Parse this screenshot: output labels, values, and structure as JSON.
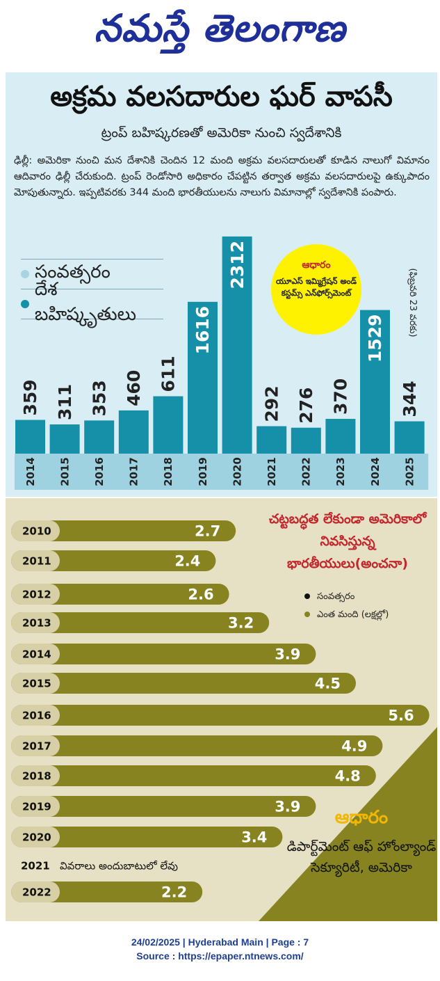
{
  "masthead": "నమస్తే తెలంగాణ",
  "headline": "అక్రమ వలసదారుల ఘర్ వాపసీ",
  "subheadline": "ట్రంప్ బహిష్కరణతో అమెరికా నుంచి స్వదేశానికి",
  "body": "ఢిల్లీ: అమెరికా నుంచి మన దేశానికి చెందిన 12 మంది అక్రమ వలసదారులతో కూడిన నాలుగో విమానం ఆదివారం ఢిల్లీ చేరుకుంది. ట్రంప్ రెండోసారి అధికారం చేపట్టిన తర్వాత అక్రమ వలసదారులపై ఉక్కుపాదం మోపుతున్నారు. ఇప్పటివరకు 344 మంది భారతీయులను నాలుగు విమానాల్లో స్వదేశానికి పంపారు.",
  "colors": {
    "teal": "#1590a8",
    "teal_light": "#9fd2e0",
    "olive": "#868320",
    "panel1_bg": "#d9eef4",
    "panel2_bg": "#e6e1c4",
    "title_red": "#c1272d",
    "source_yellow": "#f2b705",
    "year_dot": "#a6d4e2"
  },
  "chart1_legend": {
    "year": "సంవత్సరం",
    "deportations": "దేశ బహిష్కృతులు"
  },
  "chart1_source": {
    "label": "ఆధారం",
    "text": "యూఎస్ ఇమ్మిగ్రేషన్ అండ్ కస్టమ్స్ ఎన్‌ఫోర్స్‌మెంట్"
  },
  "chart1_note": "(ఫిబ్రవరి 23 వరకు)",
  "chart2_title": "చట్టబద్ధత లేకుండా అమెరికాలో నివసిస్తున్న భారతీయులు(అంచనా)",
  "chart2_legend": {
    "year": "సంవత్సరం",
    "count": "ఎంత మంది (లక్షల్లో)"
  },
  "chart2_source": {
    "label": "ఆధారం",
    "text": "డిపార్ట్‌మెంట్ ఆఫ్ హోంల్యాండ్ సెక్యూరిటీ, అమెరికా"
  },
  "footer": {
    "line1": "24/02/2025 | Hyderabad Main | Page : 7",
    "line2": "Source : https://epaper.ntnews.com/"
  },
  "chart_data": [
    {
      "type": "bar",
      "categories": [
        "2014",
        "2015",
        "2016",
        "2017",
        "2018",
        "2019",
        "2020",
        "2021",
        "2022",
        "2023",
        "2024",
        "2025"
      ],
      "values": [
        359,
        311,
        353,
        460,
        611,
        1616,
        2312,
        292,
        276,
        370,
        1529,
        344
      ],
      "series": [
        {
          "name": "దేశ బహిష్కృతులు",
          "values": [
            359,
            311,
            353,
            460,
            611,
            1616,
            2312,
            292,
            276,
            370,
            1529,
            344
          ]
        }
      ],
      "ylim": [
        0,
        2400
      ]
    },
    {
      "type": "bar",
      "orientation": "horizontal",
      "categories": [
        "2010",
        "2011",
        "2012",
        "2013",
        "2014",
        "2015",
        "2016",
        "2017",
        "2018",
        "2019",
        "2020",
        "2021",
        "2022"
      ],
      "values": [
        2.7,
        2.4,
        2.6,
        3.2,
        3.9,
        4.5,
        5.6,
        4.9,
        4.8,
        3.9,
        3.4,
        null,
        2.2
      ],
      "missing_note": "వివరాలు అందుబాటులో లేవు",
      "series": [
        {
          "name": "ఎంత మంది (లక్షల్లో)",
          "values": [
            2.7,
            2.4,
            2.6,
            3.2,
            3.9,
            4.5,
            5.6,
            4.9,
            4.8,
            3.9,
            3.4,
            null,
            2.2
          ]
        }
      ],
      "xlim": [
        0,
        5.6
      ]
    }
  ]
}
